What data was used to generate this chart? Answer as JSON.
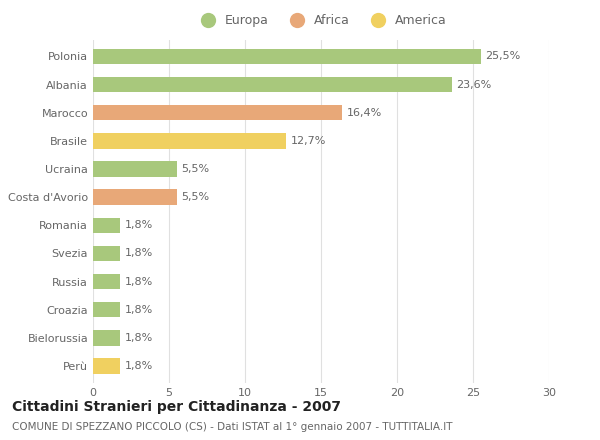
{
  "categories": [
    "Polonia",
    "Albania",
    "Marocco",
    "Brasile",
    "Ucraina",
    "Costa d'Avorio",
    "Romania",
    "Svezia",
    "Russia",
    "Croazia",
    "Bielorussia",
    "Perù"
  ],
  "values": [
    25.5,
    23.6,
    16.4,
    12.7,
    5.5,
    5.5,
    1.8,
    1.8,
    1.8,
    1.8,
    1.8,
    1.8
  ],
  "labels": [
    "25,5%",
    "23,6%",
    "16,4%",
    "12,7%",
    "5,5%",
    "5,5%",
    "1,8%",
    "1,8%",
    "1,8%",
    "1,8%",
    "1,8%",
    "1,8%"
  ],
  "colors": [
    "#a8c87c",
    "#a8c87c",
    "#e8a878",
    "#f0d060",
    "#a8c87c",
    "#e8a878",
    "#a8c87c",
    "#a8c87c",
    "#a8c87c",
    "#a8c87c",
    "#a8c87c",
    "#f0d060"
  ],
  "legend": [
    {
      "label": "Europa",
      "color": "#a8c87c"
    },
    {
      "label": "Africa",
      "color": "#e8a878"
    },
    {
      "label": "America",
      "color": "#f0d060"
    }
  ],
  "title": "Cittadini Stranieri per Cittadinanza - 2007",
  "subtitle": "COMUNE DI SPEZZANO PICCOLO (CS) - Dati ISTAT al 1° gennaio 2007 - TUTTITALIA.IT",
  "xlim": [
    0,
    30
  ],
  "xticks": [
    0,
    5,
    10,
    15,
    20,
    25,
    30
  ],
  "background_color": "#ffffff",
  "grid_color": "#e0e0e0",
  "bar_height": 0.55,
  "title_fontsize": 10,
  "subtitle_fontsize": 7.5,
  "label_fontsize": 8,
  "tick_fontsize": 8,
  "legend_fontsize": 9
}
